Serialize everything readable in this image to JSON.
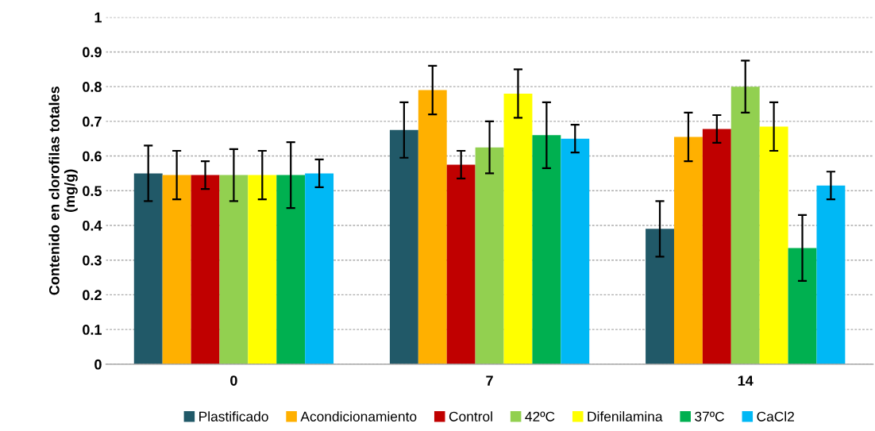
{
  "chart_data": {
    "type": "bar",
    "ylabel": "Contenido en clorofilas totales\n(mg/g)",
    "categories": [
      "0",
      "7",
      "14"
    ],
    "series": [
      {
        "name": "Plastificado",
        "color": "#215968",
        "values": [
          0.55,
          0.675,
          0.39
        ],
        "errors": [
          0.08,
          0.08,
          0.08
        ]
      },
      {
        "name": "Acondicionamiento",
        "color": "#ffb000",
        "values": [
          0.545,
          0.79,
          0.655
        ],
        "errors": [
          0.07,
          0.07,
          0.07
        ]
      },
      {
        "name": "Control",
        "color": "#c00000",
        "values": [
          0.545,
          0.575,
          0.678
        ],
        "errors": [
          0.04,
          0.04,
          0.04
        ]
      },
      {
        "name": "42ºC",
        "color": "#92d050",
        "values": [
          0.545,
          0.625,
          0.8
        ],
        "errors": [
          0.075,
          0.075,
          0.075
        ]
      },
      {
        "name": "Difenilamina",
        "color": "#ffff00",
        "values": [
          0.545,
          0.78,
          0.685
        ],
        "errors": [
          0.07,
          0.07,
          0.07
        ]
      },
      {
        "name": "37ºC",
        "color": "#00b050",
        "values": [
          0.545,
          0.66,
          0.335
        ],
        "errors": [
          0.095,
          0.095,
          0.095
        ]
      },
      {
        "name": "CaCl2",
        "color": "#00b8f5",
        "values": [
          0.55,
          0.65,
          0.515
        ],
        "errors": [
          0.04,
          0.04,
          0.04
        ]
      }
    ],
    "ylim": [
      0,
      1
    ],
    "yticks": [
      0,
      {
        "value": 0.1,
        "label": "0.1"
      },
      {
        "value": 0.2,
        "label": "0.2"
      },
      {
        "value": 0.3,
        "label": "0.3"
      },
      {
        "value": 0.4,
        "label": "0.4"
      },
      {
        "value": 0.5,
        "label": "0.5"
      },
      {
        "value": 0.6,
        "label": "0.6"
      },
      {
        "value": 0.7,
        "label": "0.7"
      },
      {
        "value": 0.8,
        "label": "0.8"
      },
      {
        "value": 0.9,
        "label": "0.9"
      },
      1
    ],
    "grid": "y",
    "legend": "bottom"
  }
}
